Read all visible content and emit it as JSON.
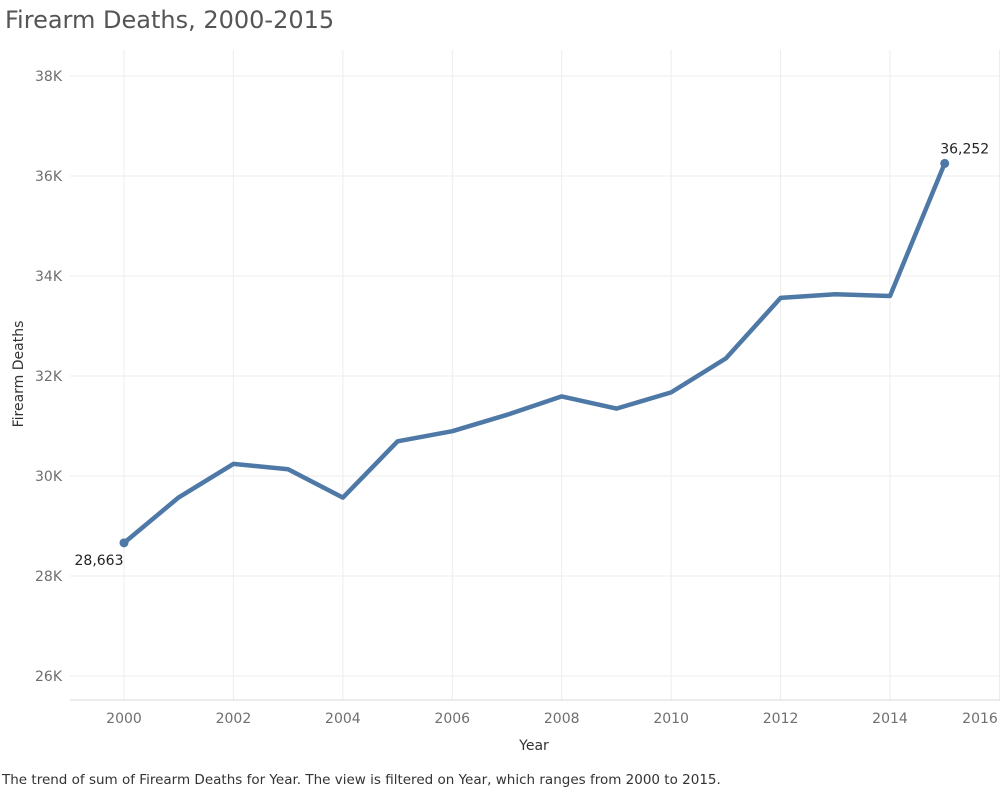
{
  "title": "Firearm Deaths, 2000-2015",
  "caption": "The trend of sum of Firearm Deaths for Year. The view is filtered on Year, which ranges from 2000 to 2015.",
  "chart_data": {
    "type": "line",
    "title": "Firearm Deaths, 2000-2015",
    "xlabel": "Year",
    "ylabel": "Firearm Deaths",
    "xlim": [
      1999,
      2016
    ],
    "ylim": [
      25000,
      38500
    ],
    "x_ticks": [
      2000,
      2002,
      2004,
      2006,
      2008,
      2010,
      2012,
      2014,
      2016
    ],
    "x_tick_labels": [
      "2000",
      "2002",
      "2004",
      "2006",
      "2008",
      "2010",
      "2012",
      "2014",
      "2016"
    ],
    "y_ticks": [
      26000,
      28000,
      30000,
      32000,
      34000,
      36000,
      38000
    ],
    "y_tick_labels": [
      "26K",
      "28K",
      "30K",
      "32K",
      "34K",
      "36K",
      "38K"
    ],
    "grid": true,
    "line_color": "#4e79a7",
    "series": [
      {
        "x": [
          2000,
          2001,
          2002,
          2003,
          2004,
          2005,
          2006,
          2007,
          2008,
          2009,
          2010,
          2011,
          2012,
          2013,
          2014,
          2015
        ],
        "values": [
          28663,
          29573,
          30242,
          30136,
          29569,
          30694,
          30896,
          31224,
          31593,
          31347,
          31672,
          32351,
          33563,
          33636,
          33599,
          36252
        ]
      }
    ],
    "data_labels": [
      {
        "x": 2000,
        "y": 28663,
        "text": "28,663"
      },
      {
        "x": 2015,
        "y": 36252,
        "text": "36,252"
      }
    ]
  }
}
